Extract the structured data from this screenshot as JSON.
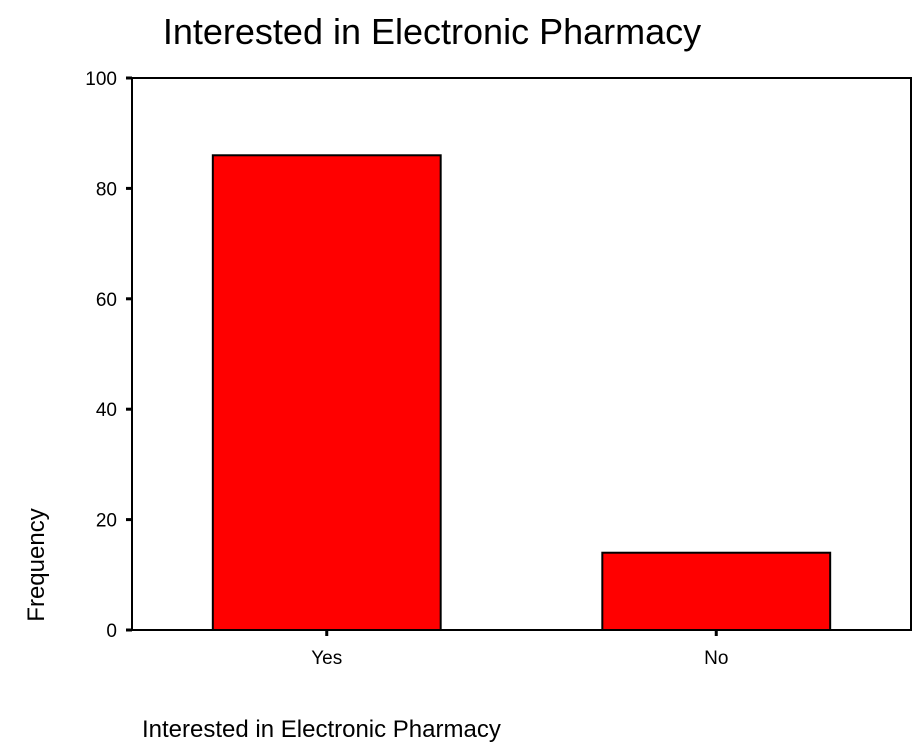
{
  "chart_data": {
    "type": "bar",
    "title": "Interested in Electronic Pharmacy",
    "xlabel": "Interested in Electronic Pharmacy",
    "ylabel": "Frequency",
    "categories": [
      "Yes",
      "No"
    ],
    "values": [
      86,
      14
    ],
    "ylim": [
      0,
      100
    ],
    "yticks": [
      0,
      20,
      40,
      60,
      80,
      100
    ],
    "grid": false,
    "legend": "none",
    "colors": {
      "bar_fill": "#ff0000",
      "bar_stroke": "#000000",
      "axis": "#000000",
      "background": "#ffffff"
    }
  }
}
